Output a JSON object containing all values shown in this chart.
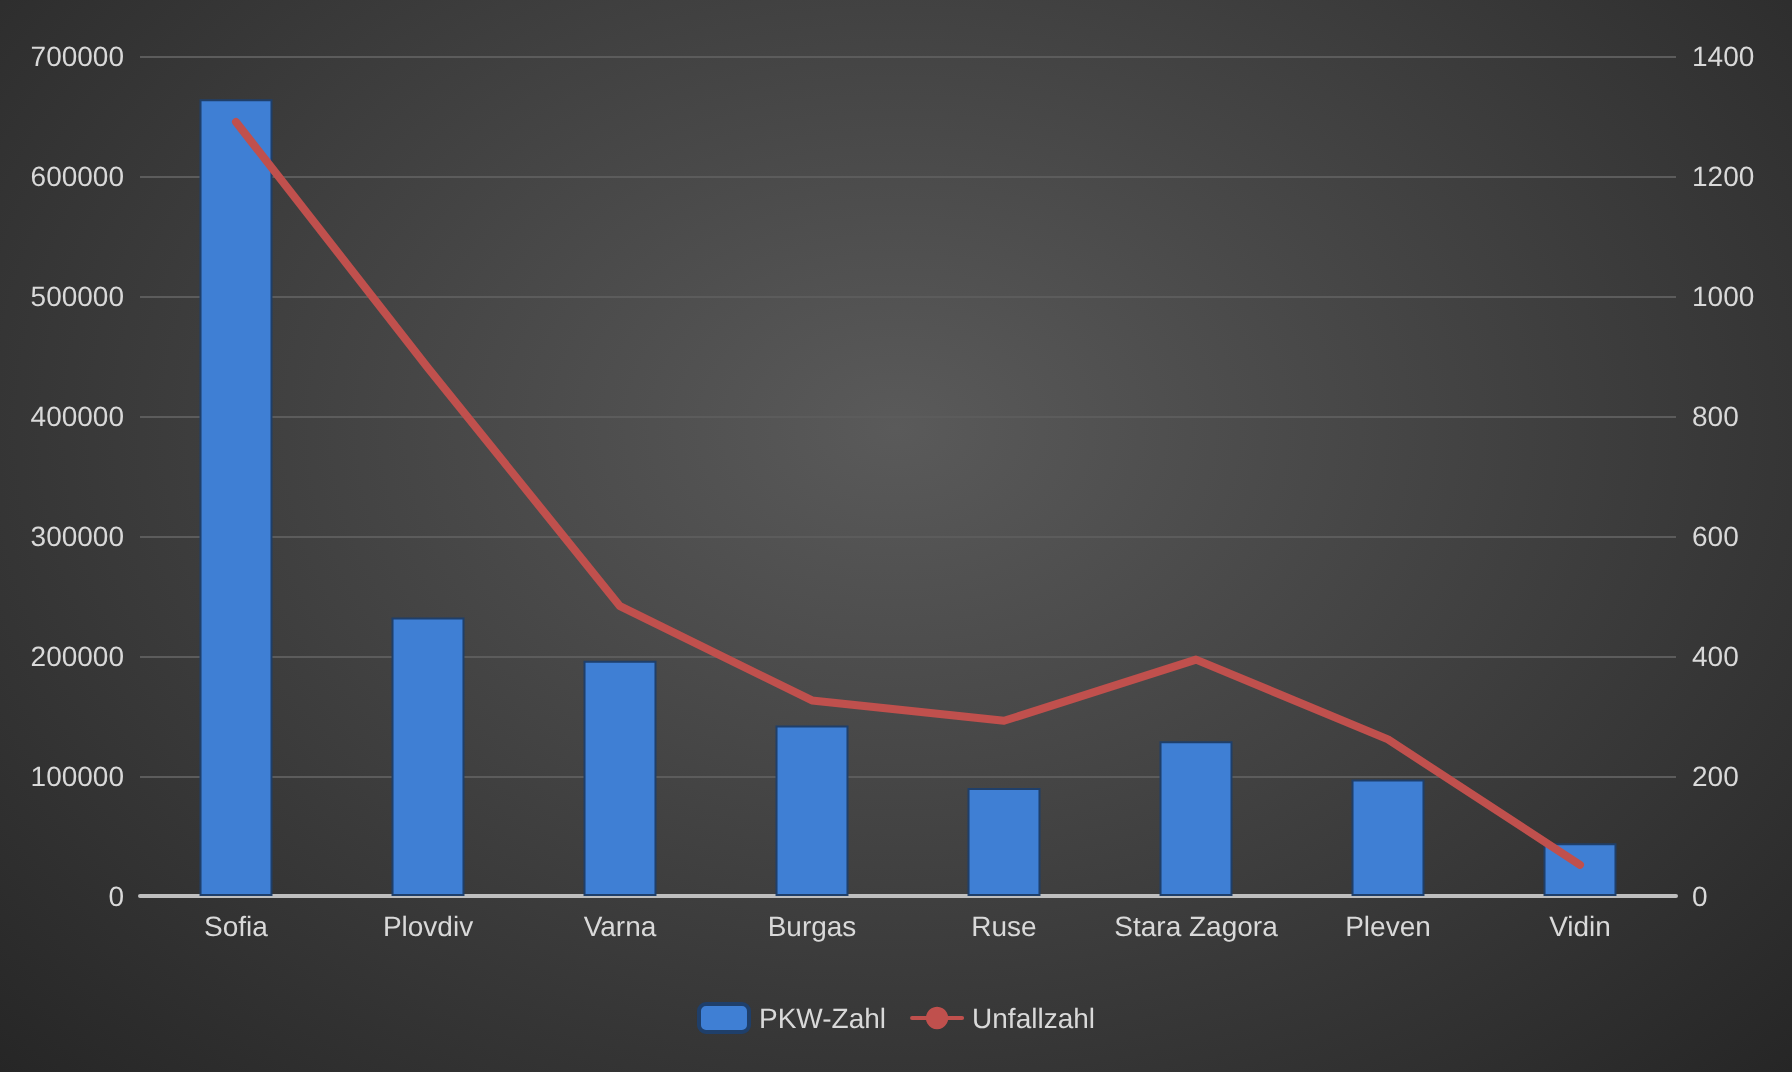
{
  "chart_data": {
    "type": "bar",
    "categories": [
      "Sofia",
      "Plovdiv",
      "Varna",
      "Burgas",
      "Ruse",
      "Stara Zagora",
      "Pleven",
      "Vidin"
    ],
    "series": [
      {
        "name": "PKW-Zahl",
        "color": "#3f7fd4",
        "values": [
          664000,
          232000,
          196000,
          142000,
          90000,
          129000,
          97000,
          44000
        ]
      },
      {
        "name": "Unfallzahl",
        "type": "line",
        "axis": "y2",
        "color": "#c0504d",
        "values": [
          1290,
          880,
          483,
          326,
          292,
          394,
          261,
          52
        ]
      }
    ],
    "ylim": [
      0,
      700000
    ],
    "yticks": [
      0,
      100000,
      200000,
      300000,
      400000,
      500000,
      600000,
      700000
    ],
    "y2lim": [
      0,
      1400
    ],
    "y2ticks": [
      0,
      200,
      400,
      600,
      800,
      1000,
      1200,
      1400
    ],
    "grid": "y",
    "legend": "bottom",
    "marker": "none"
  }
}
